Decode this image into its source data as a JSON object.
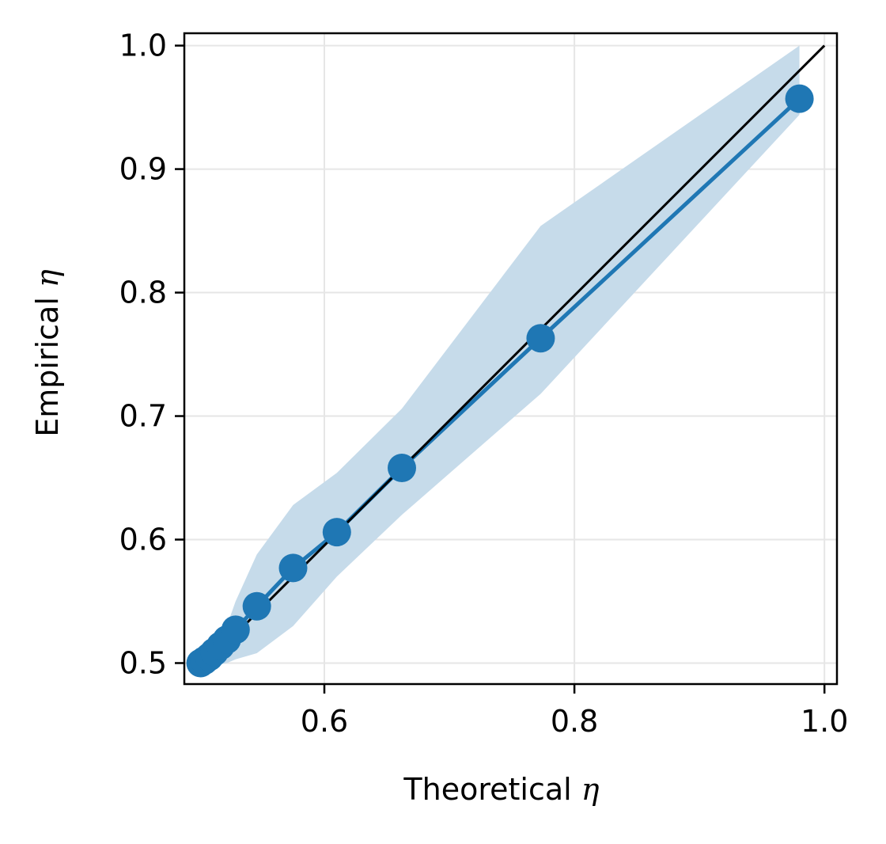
{
  "chart_data": {
    "type": "scatter",
    "xlabel": "Theoretical",
    "ylabel": "Empirical",
    "axis_symbol": "η",
    "xlim": [
      0.488,
      1.01
    ],
    "ylim": [
      0.483,
      1.01
    ],
    "x_ticks": [
      0.6,
      0.8,
      1.0
    ],
    "x_tick_labels": [
      "0.6",
      "0.8",
      "1.0"
    ],
    "y_ticks": [
      0.5,
      0.6,
      0.7,
      0.8,
      0.9,
      1.0
    ],
    "y_tick_labels": [
      "0.5",
      "0.6",
      "0.7",
      "0.8",
      "0.9",
      "1.0"
    ],
    "grid": true,
    "reference_line": {
      "x": [
        0.497,
        1.0
      ],
      "y": [
        0.491,
        1.0
      ]
    },
    "series": [
      {
        "x": [
          0.501,
          0.504,
          0.508,
          0.512,
          0.517,
          0.522,
          0.529,
          0.546,
          0.575,
          0.61,
          0.662,
          0.773,
          0.98
        ],
        "y": [
          0.5,
          0.502,
          0.505,
          0.509,
          0.514,
          0.519,
          0.527,
          0.546,
          0.577,
          0.606,
          0.658,
          0.763,
          0.957
        ],
        "band_upper": [
          0.5,
          0.504,
          0.51,
          0.516,
          0.522,
          0.53,
          0.55,
          0.588,
          0.628,
          0.654,
          0.706,
          0.854,
          1.0
        ],
        "band_lower": [
          0.5,
          0.5,
          0.5,
          0.499,
          0.499,
          0.5,
          0.503,
          0.508,
          0.53,
          0.57,
          0.62,
          0.718,
          0.944
        ]
      }
    ],
    "colors": {
      "series": "#1f77b4",
      "band": "#c6dbea",
      "reference": "#000000",
      "grid": "#e6e6e6"
    }
  }
}
